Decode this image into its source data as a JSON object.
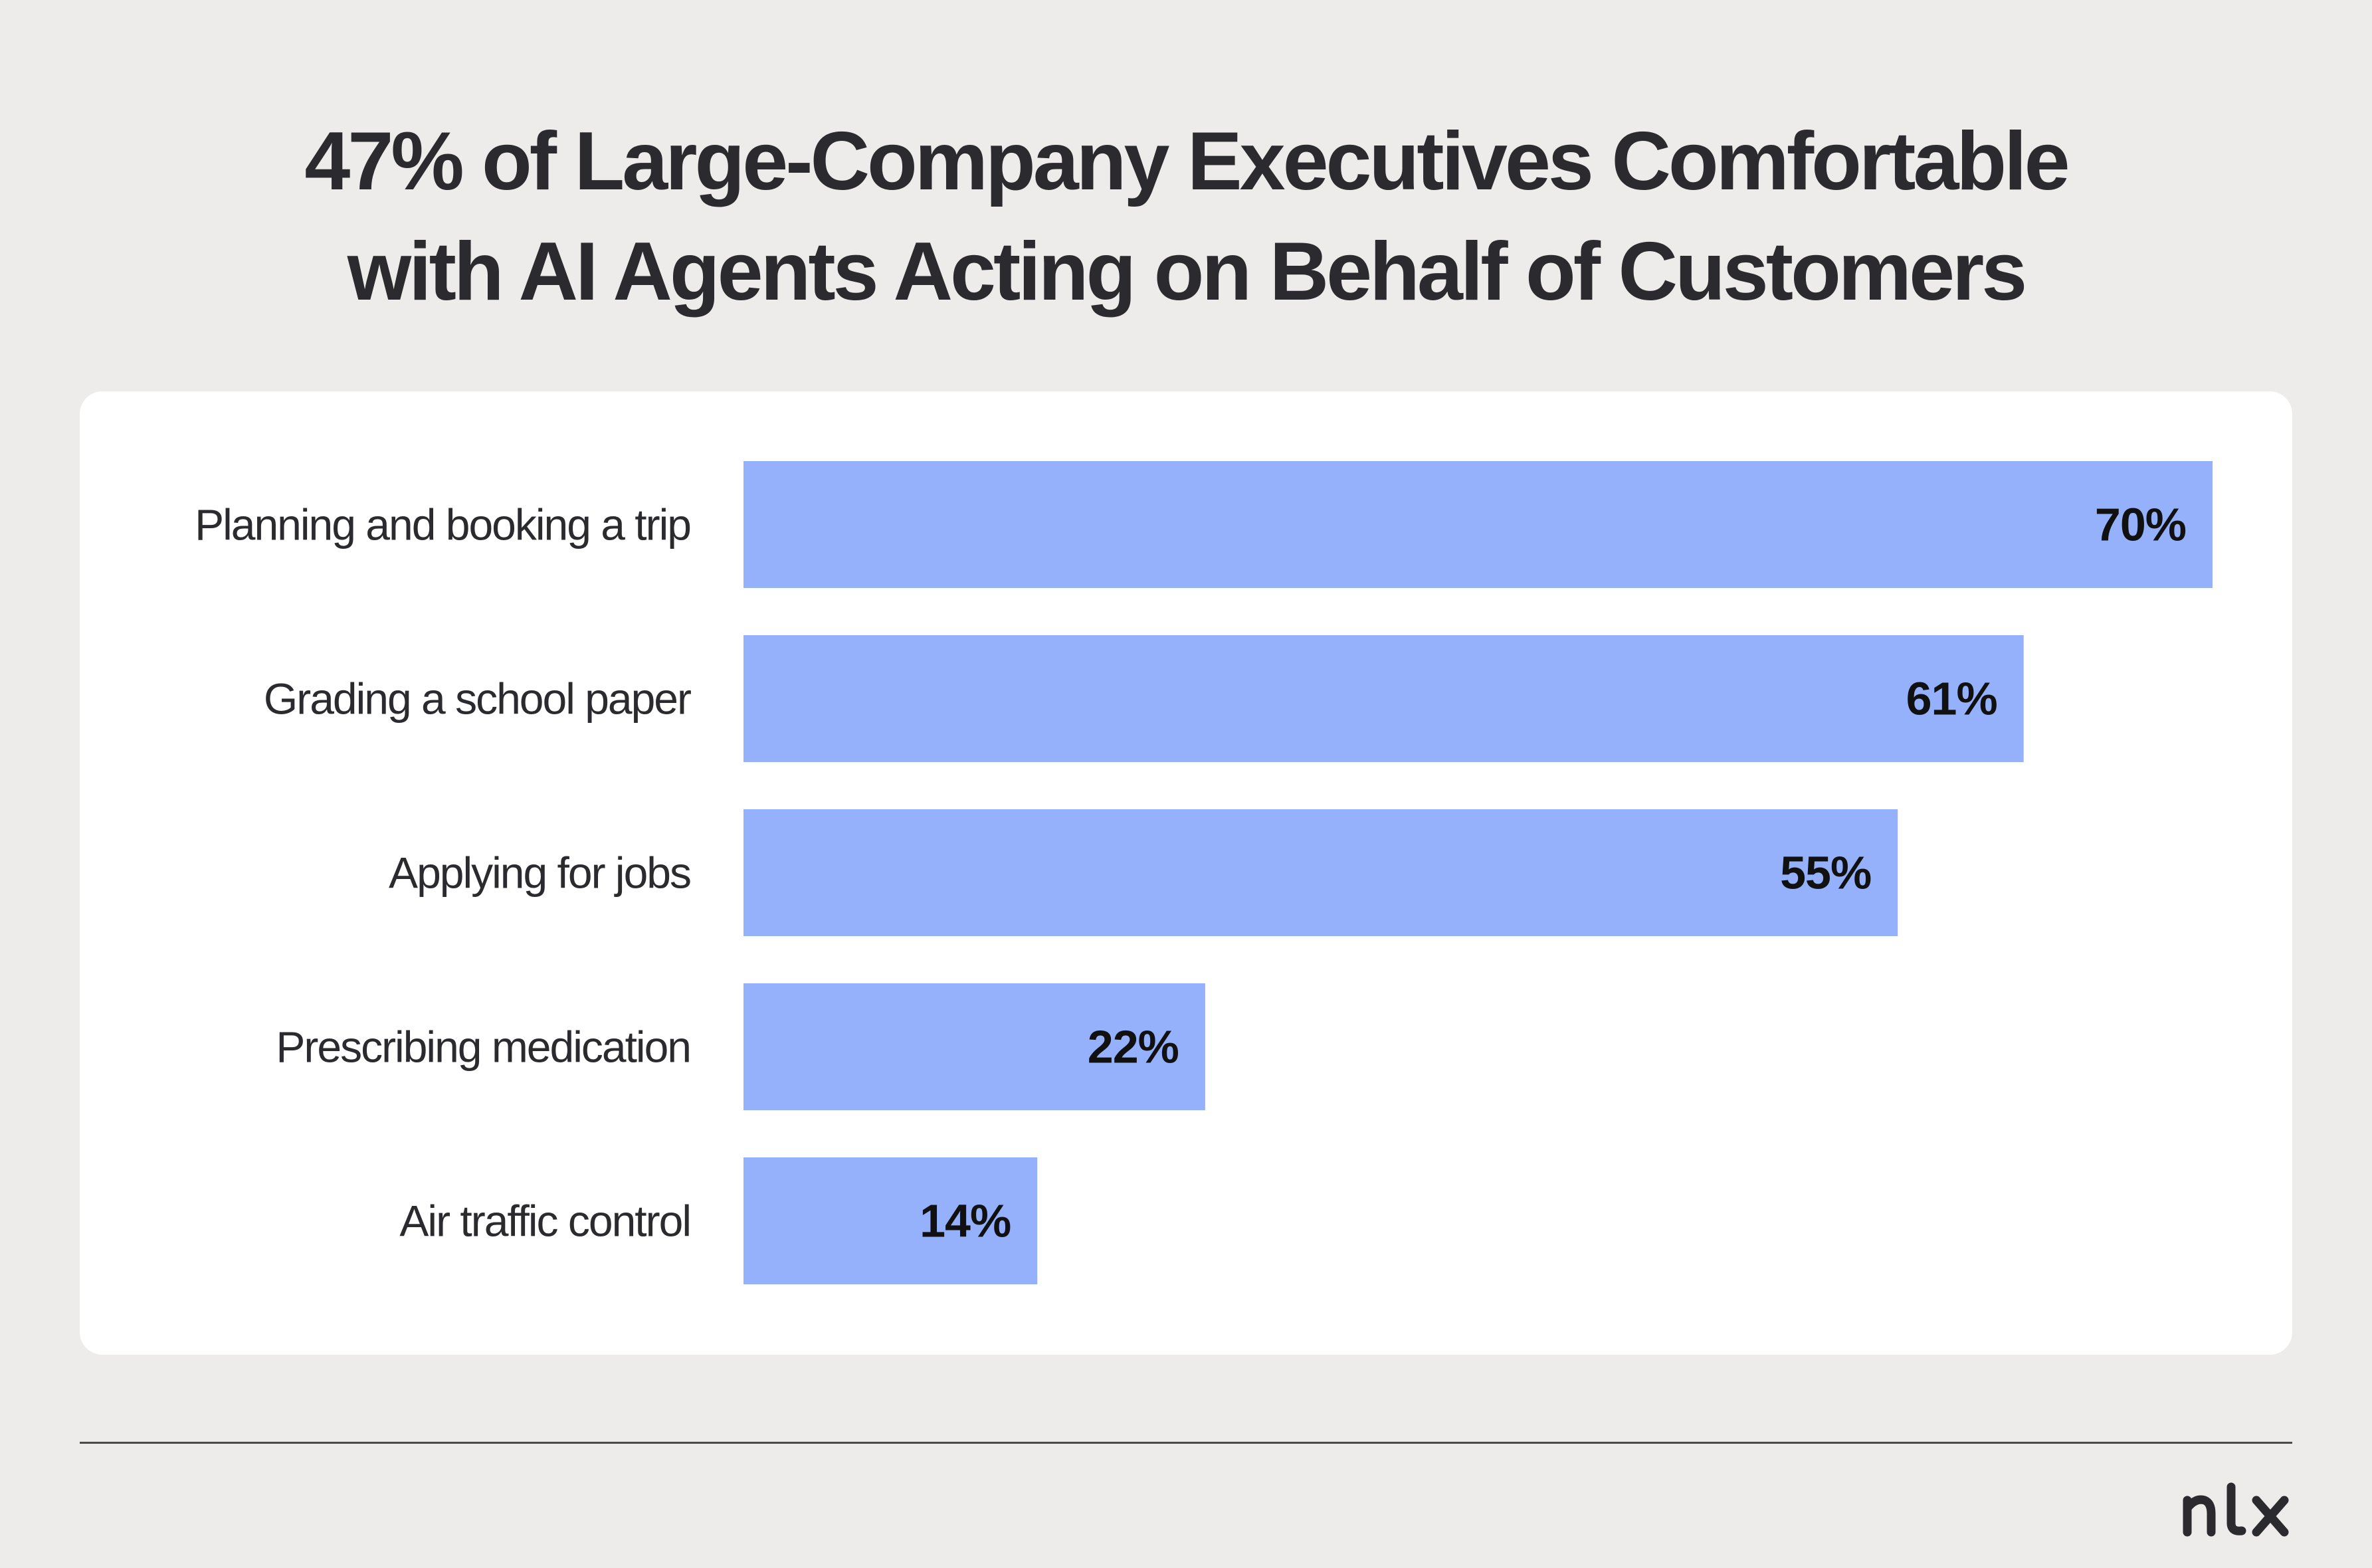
{
  "title": {
    "line1": "47% of Large-Company Executives Comfortable",
    "line2": "with AI Agents Acting on Behalf of Customers"
  },
  "brand": {
    "logo_text": "nlx",
    "logo_icon": "nlx-logo-icon"
  },
  "colors": {
    "background": "#edecea",
    "card": "#ffffff",
    "bar": "#95b1fc",
    "text": "#2b2b2f"
  },
  "chart_data": {
    "type": "bar",
    "orientation": "horizontal",
    "title": "47% of Large-Company Executives Comfortable with AI Agents Acting on Behalf of Customers",
    "categories": [
      "Planning and booking a trip",
      "Grading a school paper",
      "Applying for jobs",
      "Prescribing medication",
      "Air traffic control"
    ],
    "values": [
      70,
      61,
      55,
      22,
      14
    ],
    "value_labels": [
      "70%",
      "61%",
      "55%",
      "22%",
      "14%"
    ],
    "unit": "%",
    "xlim": [
      0,
      70
    ],
    "grid": false,
    "legend": "none"
  }
}
